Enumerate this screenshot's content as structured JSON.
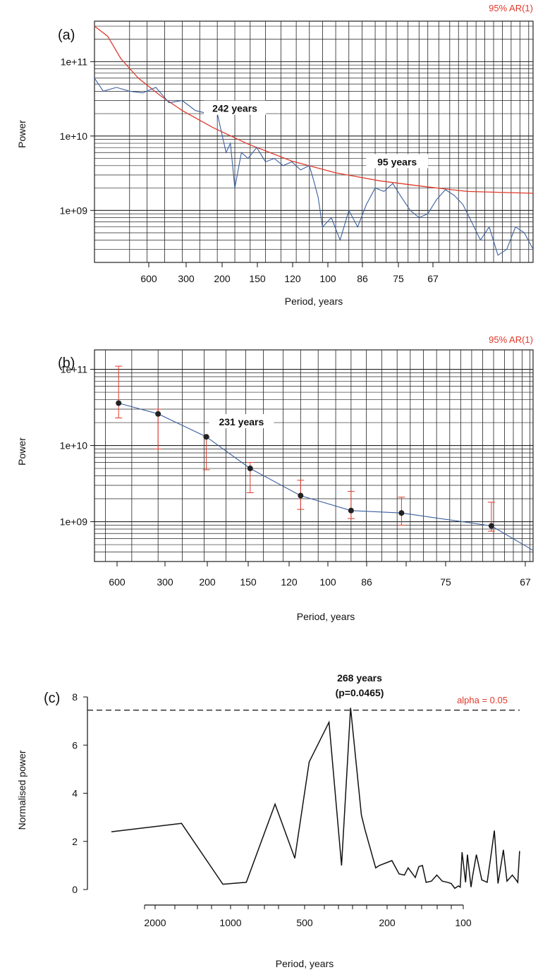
{
  "colors": {
    "blue": "#3a5f9f",
    "red": "#e0392b",
    "black": "#111111",
    "grid": "#222222"
  },
  "chart_data": [
    {
      "type": "line",
      "panel_label": "(a)",
      "xlabel": "Period, years",
      "ylabel": "Power",
      "y_scale": "log",
      "ylim": [
        200000000.0,
        350000000000.0
      ],
      "x_tick_labels": [
        "600",
        "300",
        "200",
        "150",
        "120",
        "100",
        "86",
        "75",
        "67"
      ],
      "y_tick_labels": [
        "1e+09",
        "1e+10",
        "1e+11"
      ],
      "y_tick_values": [
        1000000000.0,
        10000000000.0,
        100000000000.0
      ],
      "series": [
        {
          "name": "95% AR(1)",
          "color": "red",
          "x_frac": [
            0,
            0.03,
            0.06,
            0.1,
            0.15,
            0.2,
            0.27,
            0.35,
            0.45,
            0.55,
            0.65,
            0.75,
            0.85,
            1
          ],
          "values": [
            300000000000.0,
            220000000000.0,
            110000000000.0,
            60000000000.0,
            35000000000.0,
            22000000000.0,
            13000000000.0,
            7800000000.0,
            4600000000.0,
            3200000000.0,
            2500000000.0,
            2100000000.0,
            1800000000.0,
            1700000000.0
          ]
        },
        {
          "name": "",
          "color": "blue",
          "x_frac": [
            0,
            0.02,
            0.05,
            0.08,
            0.11,
            0.14,
            0.17,
            0.2,
            0.23,
            0.26,
            0.28,
            0.3,
            0.31,
            0.32,
            0.335,
            0.35,
            0.37,
            0.39,
            0.41,
            0.43,
            0.45,
            0.47,
            0.49,
            0.5,
            0.51,
            0.52,
            0.54,
            0.56,
            0.58,
            0.6,
            0.62,
            0.64,
            0.66,
            0.68,
            0.7,
            0.72,
            0.74,
            0.76,
            0.78,
            0.8,
            0.82,
            0.84,
            0.86,
            0.88,
            0.9,
            0.92,
            0.94,
            0.96,
            0.98,
            1
          ],
          "values": [
            60000000000.0,
            40000000000.0,
            45000000000.0,
            40000000000.0,
            38000000000.0,
            45000000000.0,
            28000000000.0,
            30000000000.0,
            22000000000.0,
            20000000000.0,
            20000000000.0,
            6000000000.0,
            8000000000.0,
            2000000000.0,
            6000000000.0,
            5000000000.0,
            7000000000.0,
            4500000000.0,
            5000000000.0,
            4000000000.0,
            4500000000.0,
            3500000000.0,
            4000000000.0,
            2500000000.0,
            1500000000.0,
            600000000.0,
            800000000.0,
            400000000.0,
            1000000000.0,
            600000000.0,
            1200000000.0,
            2000000000.0,
            1800000000.0,
            2300000000.0,
            1500000000.0,
            1000000000.0,
            800000000.0,
            900000000.0,
            1400000000.0,
            1900000000.0,
            1600000000.0,
            1200000000.0,
            700000000.0,
            400000000.0,
            600000000.0,
            250000000.0,
            300000000.0,
            600000000.0,
            500000000.0,
            300000000.0
          ]
        }
      ],
      "annotations": [
        {
          "text": "242 years",
          "x_frac": 0.32,
          "value": 23000000000.0
        },
        {
          "text": "95 years",
          "x_frac": 0.69,
          "value": 4400000000.0
        }
      ],
      "legend_text": "95% AR(1)"
    },
    {
      "type": "line",
      "panel_label": "(b)",
      "xlabel": "Period, years",
      "ylabel": "Power",
      "y_scale": "log",
      "ylim": [
        300000000.0,
        180000000000.0
      ],
      "x_tick_labels": [
        "600",
        "300",
        "200",
        "150",
        "120",
        "100",
        "86",
        "75",
        "67"
      ],
      "y_tick_labels": [
        "1e+09",
        "1e+10",
        "1e+11"
      ],
      "y_tick_values": [
        1000000000.0,
        10000000000.0,
        100000000000.0
      ],
      "points": [
        {
          "x_frac": 0.055,
          "value": 36000000000.0,
          "lo": 23000000000.0,
          "hi": 110000000000.0
        },
        {
          "x_frac": 0.145,
          "value": 26000000000.0,
          "lo": 9000000000.0,
          "hi": 30000000000.0
        },
        {
          "x_frac": 0.255,
          "value": 13000000000.0,
          "lo": 4800000000.0,
          "hi": 13000000000.0
        },
        {
          "x_frac": 0.355,
          "value": 5000000000.0,
          "lo": 2400000000.0,
          "hi": 6000000000.0
        },
        {
          "x_frac": 0.47,
          "value": 2200000000.0,
          "lo": 1450000000.0,
          "hi": 3500000000.0
        },
        {
          "x_frac": 0.585,
          "value": 1400000000.0,
          "lo": 1100000000.0,
          "hi": 2500000000.0
        },
        {
          "x_frac": 0.7,
          "value": 1300000000.0,
          "lo": 900000000.0,
          "hi": 2100000000.0
        },
        {
          "x_frac": 0.905,
          "value": 880000000.0,
          "lo": 750000000.0,
          "hi": 1800000000.0
        }
      ],
      "curve_end_value": 420000000.0,
      "annotations": [
        {
          "text": "231 years",
          "x_frac": 0.335,
          "value": 20000000000.0
        }
      ],
      "legend_text": "95% AR(1)"
    },
    {
      "type": "line",
      "panel_label": "(c)",
      "xlabel": "Period, years",
      "ylabel": "Normalised power",
      "ylim": [
        0,
        8
      ],
      "y_tick_labels": [
        "0",
        "2",
        "4",
        "6",
        "8"
      ],
      "y_tick_values": [
        0,
        2,
        4,
        6,
        8
      ],
      "x_tick_labels": [
        "2000",
        "1000",
        "500",
        "200",
        "100"
      ],
      "threshold": 7.45,
      "threshold_label": "alpha = 0.05",
      "annotation_line1": "268 years",
      "annotation_line2": "(p=0.0465)",
      "x_frac": [
        0,
        0.195,
        0.31,
        0.375,
        0.455,
        0.51,
        0.55,
        0.605,
        0.64,
        0.665,
        0.695,
        0.705,
        0.735,
        0.745,
        0.78,
        0.8,
        0.815,
        0.825,
        0.845,
        0.855,
        0.865,
        0.875,
        0.89,
        0.905,
        0.92,
        0.935,
        0.945,
        0.955,
        0.965,
        0.97,
        0.975,
        0.985,
        0.99,
        1,
        1.005,
        1.015,
        1.03,
        1.045,
        1.055,
        1.065,
        1.075,
        1.09,
        1.1,
        1.115,
        1.125,
        1.13,
        1.135
      ],
      "values": [
        2.4,
        2.75,
        0.22,
        0.3,
        3.55,
        1.3,
        5.3,
        6.95,
        1.0,
        7.55,
        3.1,
        2.5,
        0.9,
        1.0,
        1.2,
        0.65,
        0.6,
        0.9,
        0.5,
        0.95,
        1.0,
        0.3,
        0.35,
        0.6,
        0.35,
        0.3,
        0.25,
        0.05,
        0.15,
        0.1,
        1.55,
        0.3,
        1.45,
        0.1,
        0.6,
        1.45,
        0.4,
        0.3,
        1.35,
        2.45,
        0.25,
        1.65,
        0.35,
        0.6,
        0.4,
        0.3,
        1.6
      ]
    }
  ]
}
